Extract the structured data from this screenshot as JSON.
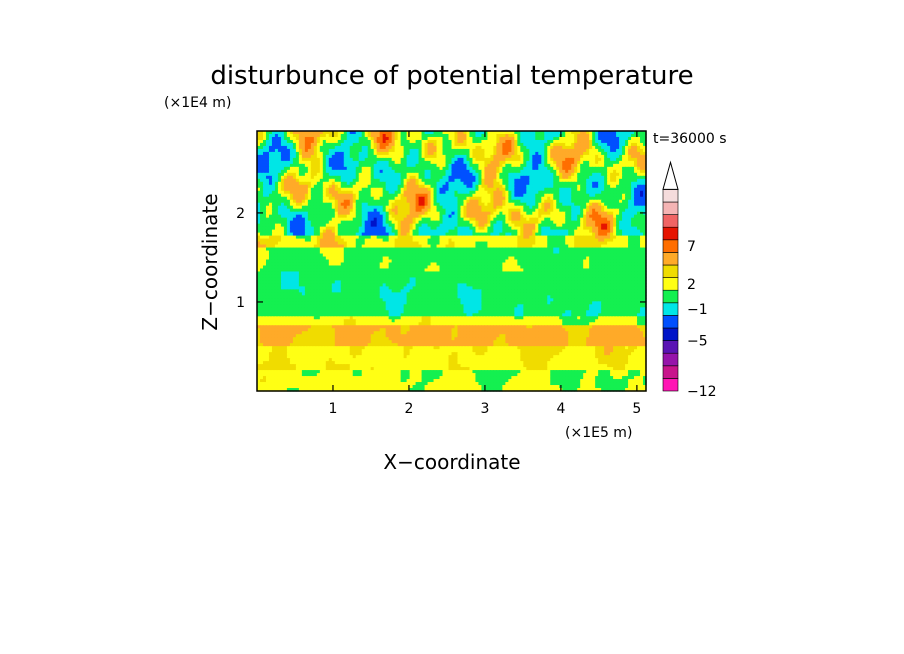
{
  "chart_data": {
    "type": "heatmap",
    "title": "disturbunce of potential temperature",
    "time_label": "t=36000 s",
    "xlabel": "X−coordinate",
    "ylabel": "Z−coordinate",
    "x_unit": "(×1E5 m)",
    "y_unit": "(×1E4 m)",
    "xlim": [
      0,
      5.12
    ],
    "ylim": [
      0,
      2.92
    ],
    "x_ticks": [
      1,
      2,
      3,
      4,
      5
    ],
    "y_ticks": [
      1,
      2
    ],
    "x_tick_labels": [
      "1",
      "2",
      "3",
      "4",
      "5"
    ],
    "y_tick_labels": [
      "1",
      "2"
    ],
    "colorbar": {
      "levels": [
        {
          "color": "#ff14b4"
        },
        {
          "color": "#c8148c"
        },
        {
          "color": "#9614aa"
        },
        {
          "color": "#5a14b4"
        },
        {
          "color": "#0014c8"
        },
        {
          "color": "#0050ff"
        },
        {
          "color": "#00e6e6"
        },
        {
          "color": "#14f050"
        },
        {
          "color": "#ffff14"
        },
        {
          "color": "#f0dc00"
        },
        {
          "color": "#ffaa28"
        },
        {
          "color": "#ff6e00"
        },
        {
          "color": "#e61400"
        },
        {
          "color": "#f06464"
        },
        {
          "color": "#f5b4b4"
        },
        {
          "color": "#f5dcdc"
        }
      ],
      "tick_labels": [
        {
          "text": "−12",
          "boundary": 0
        },
        {
          "text": "−5",
          "boundary": 4
        },
        {
          "text": "−1",
          "boundary": 6.5
        },
        {
          "text": "2",
          "boundary": 8.5
        },
        {
          "text": "7",
          "boundary": 11.5
        }
      ],
      "extend": "max"
    }
  }
}
